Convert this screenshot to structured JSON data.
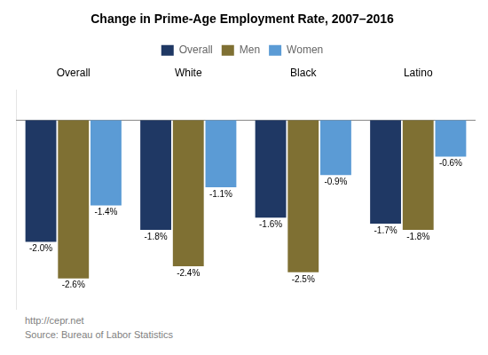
{
  "chart_data": {
    "type": "bar",
    "title": "Change in Prime-Age Employment Rate, 2007–2016",
    "categories": [
      "Overall",
      "White",
      "Black",
      "Latino"
    ],
    "series": [
      {
        "name": "Overall",
        "color": "#1F3864",
        "values": [
          -2.0,
          -1.8,
          -1.6,
          -1.7
        ],
        "value_labels": [
          "-2.0%",
          "-1.8%",
          "-1.6%",
          "-1.7%"
        ]
      },
      {
        "name": "Men",
        "color": "#7F7033",
        "values": [
          -2.6,
          -2.4,
          -2.5,
          -1.8
        ],
        "value_labels": [
          "-2.6%",
          "-2.4%",
          "-2.5%",
          "-1.8%"
        ]
      },
      {
        "name": "Women",
        "color": "#5B9BD5",
        "values": [
          -1.4,
          -1.1,
          -0.9,
          -0.6
        ],
        "value_labels": [
          "-1.4%",
          "-1.1%",
          "-0.9%",
          "-0.6%"
        ]
      }
    ],
    "ylim": [
      -3.1,
      0.5
    ],
    "grid": false,
    "legend": "top",
    "data_labels": true,
    "tick_labels": "x",
    "annotations": [
      "http://cepr.net",
      "Source: Bureau of Labor Statistics"
    ]
  }
}
